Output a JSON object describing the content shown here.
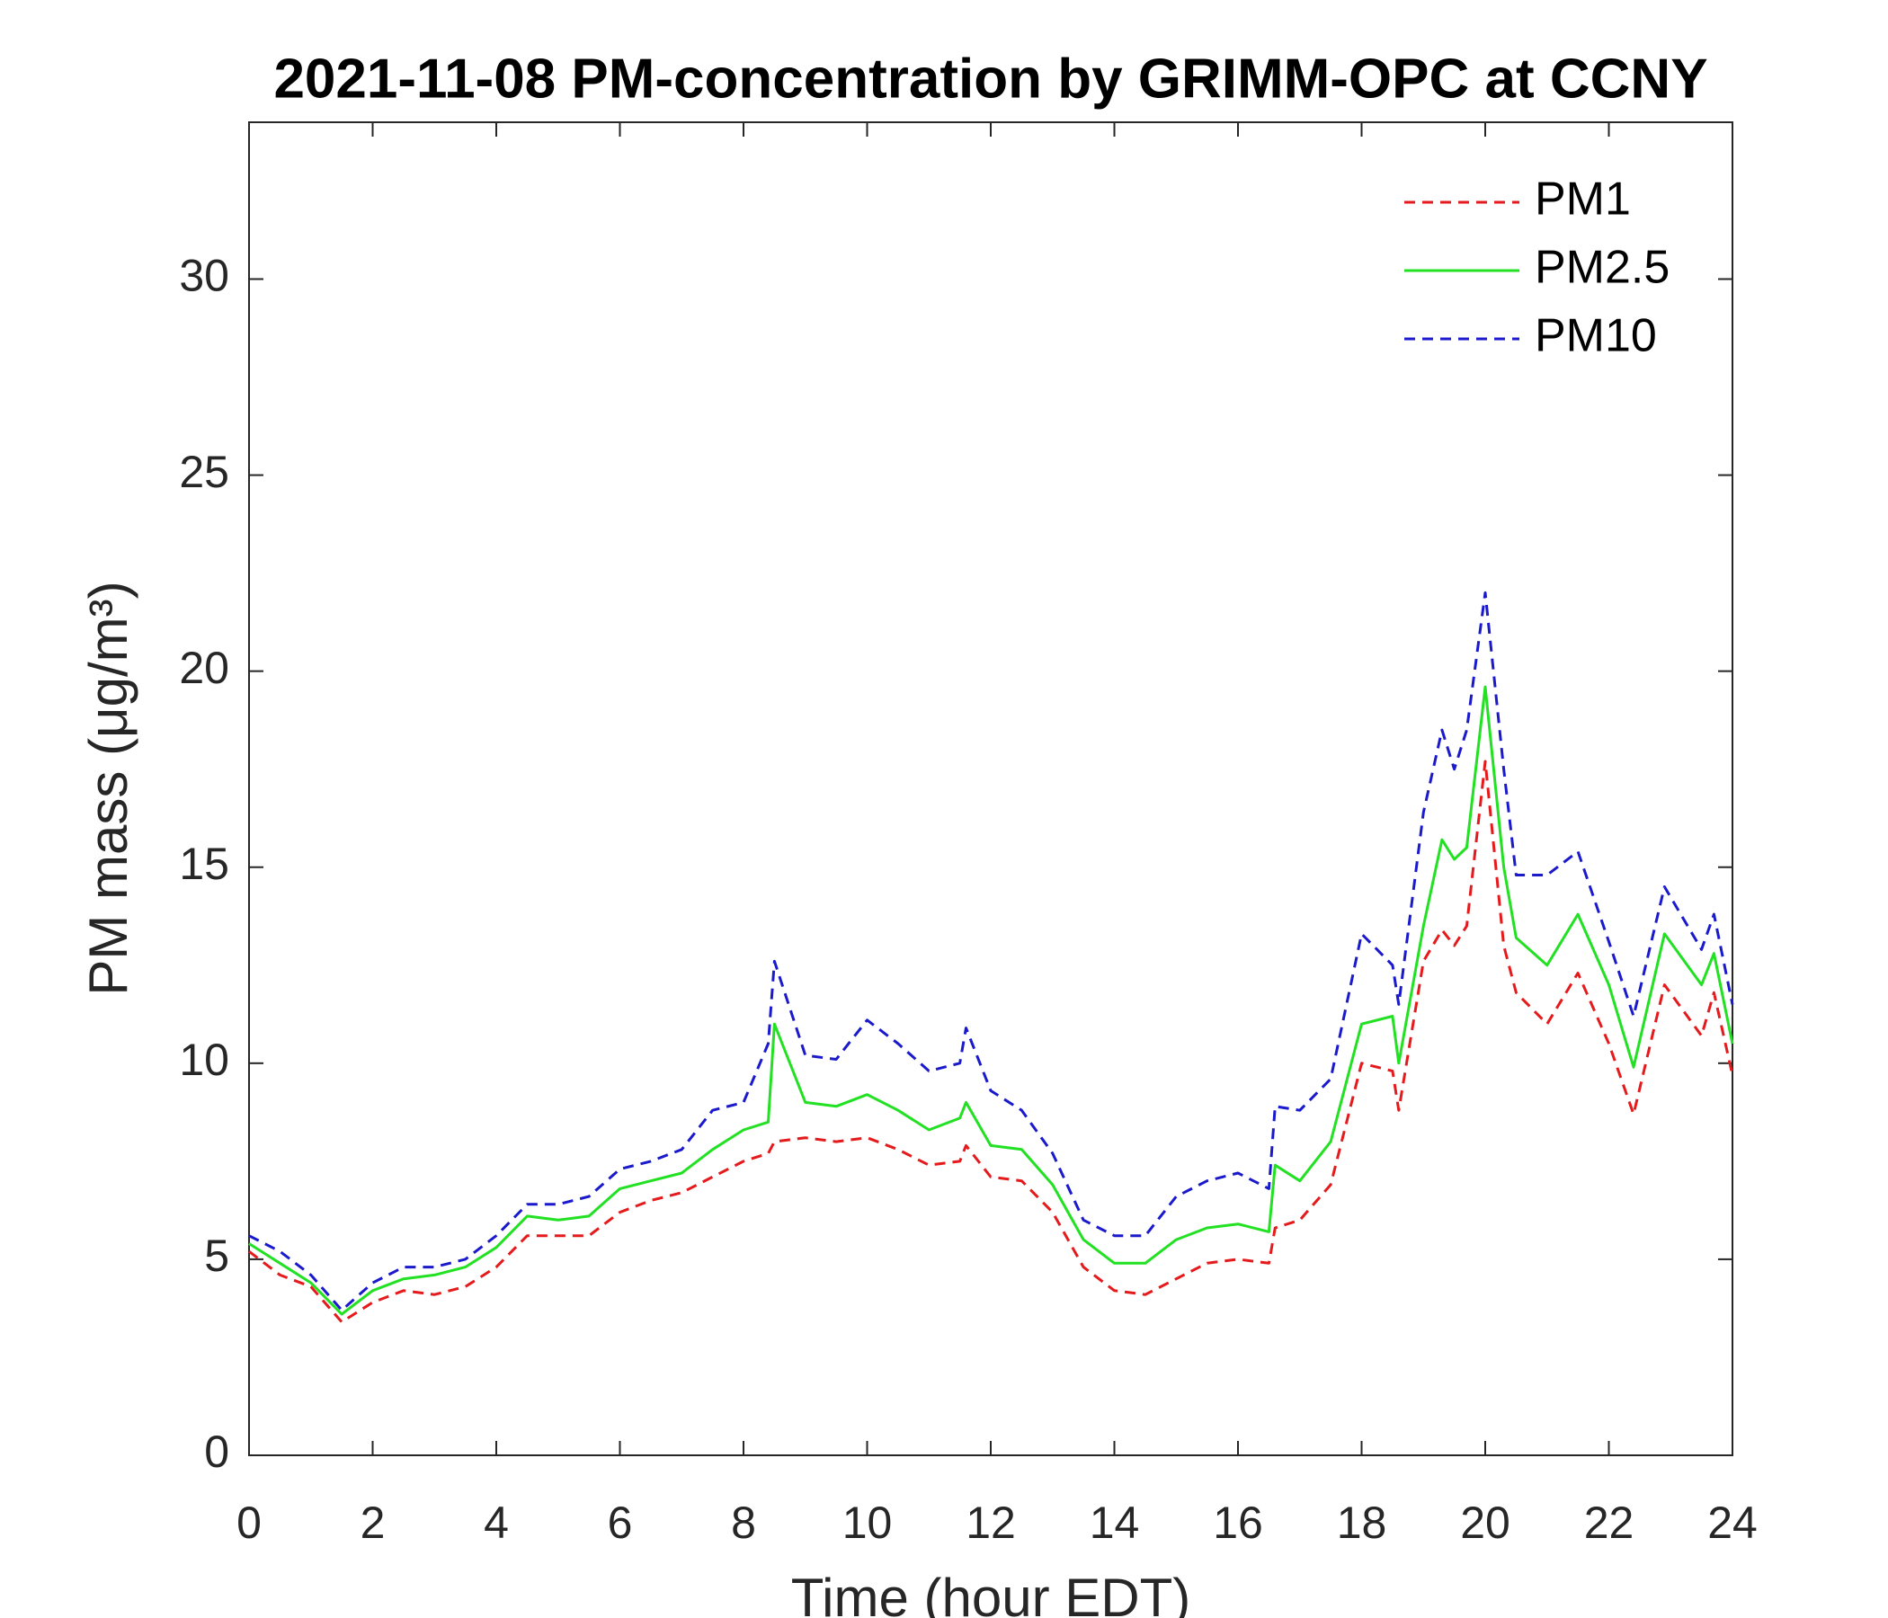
{
  "chart_data": {
    "type": "line",
    "title": "2021-11-08 PM-concentration by GRIMM-OPC at CCNY",
    "x_label": "Time (hour EDT)",
    "y_label": "PM mass (μg/m³)",
    "x": [
      0,
      0.5,
      1,
      1.5,
      2,
      2.5,
      3,
      3.5,
      4,
      4.5,
      5,
      5.5,
      6,
      6.5,
      7,
      7.5,
      8,
      8.4,
      8.5,
      9,
      9.5,
      10,
      10.5,
      11,
      11.5,
      11.6,
      12,
      12.5,
      13,
      13.5,
      14,
      14.5,
      15,
      15.5,
      16,
      16.5,
      16.6,
      17,
      17.5,
      18,
      18.5,
      18.6,
      19,
      19.3,
      19.5,
      19.7,
      20,
      20.3,
      20.5,
      21,
      21.5,
      22,
      22.4,
      22.9,
      23.5,
      23.7,
      24
    ],
    "series": [
      {
        "name": "PM1",
        "color": "#e41a1c",
        "dashed": true,
        "values": [
          5.2,
          4.6,
          4.3,
          3.4,
          3.9,
          4.2,
          4.1,
          4.3,
          4.8,
          5.6,
          5.6,
          5.6,
          6.2,
          6.5,
          6.7,
          7.1,
          7.5,
          7.7,
          8.0,
          8.1,
          8.0,
          8.1,
          7.8,
          7.4,
          7.5,
          7.9,
          7.1,
          7.0,
          6.2,
          4.8,
          4.2,
          4.1,
          4.5,
          4.9,
          5.0,
          4.9,
          5.8,
          6.0,
          6.9,
          10.0,
          9.8,
          8.8,
          12.6,
          13.4,
          13.0,
          13.5,
          17.7,
          13.0,
          11.8,
          11.0,
          12.3,
          10.5,
          8.7,
          12.0,
          10.7,
          11.8,
          9.7
        ]
      },
      {
        "name": "PM2.5",
        "color": "#22e022",
        "dashed": false,
        "values": [
          5.4,
          4.9,
          4.4,
          3.6,
          4.2,
          4.5,
          4.6,
          4.8,
          5.3,
          6.1,
          6.0,
          6.1,
          6.8,
          7.0,
          7.2,
          7.8,
          8.3,
          8.5,
          11.0,
          9.0,
          8.9,
          9.2,
          8.8,
          8.3,
          8.6,
          9.0,
          7.9,
          7.8,
          6.9,
          5.5,
          4.9,
          4.9,
          5.5,
          5.8,
          5.9,
          5.7,
          7.4,
          7.0,
          8.0,
          11.0,
          11.2,
          10.0,
          13.5,
          15.7,
          15.2,
          15.5,
          19.6,
          15.0,
          13.2,
          12.5,
          13.8,
          12.0,
          9.9,
          13.3,
          12.0,
          12.8,
          10.5
        ]
      },
      {
        "name": "PM10",
        "color": "#1a1acc",
        "dashed": true,
        "values": [
          5.6,
          5.2,
          4.6,
          3.7,
          4.4,
          4.8,
          4.8,
          5.0,
          5.6,
          6.4,
          6.4,
          6.6,
          7.3,
          7.5,
          7.8,
          8.8,
          9.0,
          10.5,
          12.6,
          10.2,
          10.1,
          11.1,
          10.5,
          9.8,
          10.0,
          10.9,
          9.3,
          8.8,
          7.7,
          6.0,
          5.6,
          5.6,
          6.6,
          7.0,
          7.2,
          6.8,
          8.9,
          8.8,
          9.6,
          13.3,
          12.5,
          11.5,
          16.4,
          18.5,
          17.5,
          18.5,
          22.0,
          17.5,
          14.8,
          14.8,
          15.4,
          13.1,
          11.2,
          14.5,
          12.9,
          13.8,
          11.5
        ]
      }
    ],
    "xlim": [
      0,
      24
    ],
    "xticks": [
      0,
      2,
      4,
      6,
      8,
      10,
      12,
      14,
      16,
      18,
      20,
      22,
      24
    ],
    "ylim": [
      0,
      34
    ],
    "yticks": [
      0,
      5,
      10,
      15,
      20,
      25,
      30
    ],
    "legend": "upper right",
    "grid": false
  }
}
